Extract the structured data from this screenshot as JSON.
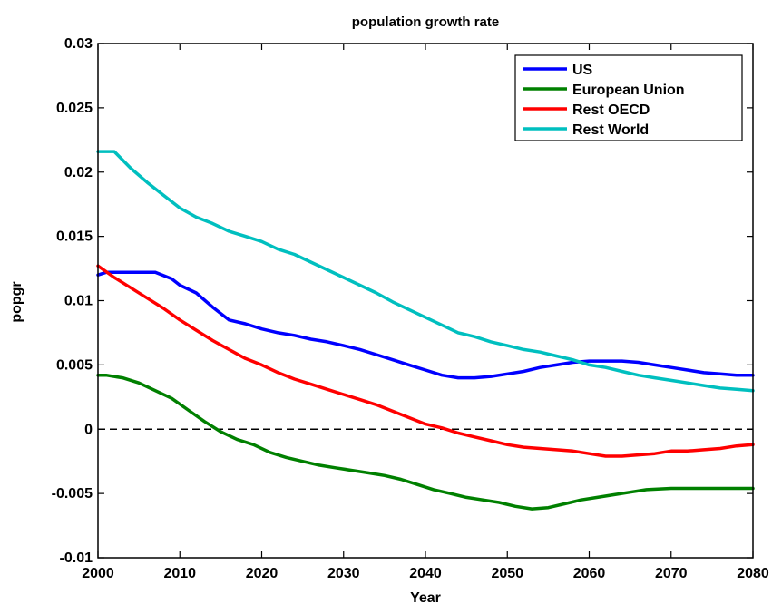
{
  "chart_data": {
    "type": "line",
    "title": "population growth rate",
    "xlabel": "Year",
    "ylabel": "popgr",
    "xlim": [
      2000,
      2080
    ],
    "ylim": [
      -0.01,
      0.03
    ],
    "grid": false,
    "legend_position": "top-right",
    "xticks": [
      "2000",
      "2010",
      "2020",
      "2030",
      "2040",
      "2050",
      "2060",
      "2070",
      "2080"
    ],
    "yticks": [
      "-0.01",
      "-0.005",
      "0",
      "0.005",
      "0.01",
      "0.015",
      "0.02",
      "0.025",
      "0.03"
    ],
    "zero_line": {
      "y": 0,
      "style": "dashed",
      "color": "#000000"
    },
    "series": [
      {
        "name": "US",
        "color": "#0000ff",
        "x": [
          2000,
          2001,
          2003,
          2005,
          2007,
          2009,
          2010,
          2012,
          2014,
          2016,
          2018,
          2020,
          2022,
          2024,
          2026,
          2028,
          2030,
          2032,
          2034,
          2036,
          2038,
          2040,
          2042,
          2044,
          2046,
          2048,
          2050,
          2052,
          2054,
          2056,
          2058,
          2060,
          2062,
          2064,
          2066,
          2068,
          2070,
          2072,
          2074,
          2076,
          2078,
          2080
        ],
        "y": [
          0.012,
          0.0122,
          0.0122,
          0.0122,
          0.0122,
          0.0117,
          0.0112,
          0.0106,
          0.0095,
          0.0085,
          0.0082,
          0.0078,
          0.0075,
          0.0073,
          0.007,
          0.0068,
          0.0065,
          0.0062,
          0.0058,
          0.0054,
          0.005,
          0.0046,
          0.0042,
          0.004,
          0.004,
          0.0041,
          0.0043,
          0.0045,
          0.0048,
          0.005,
          0.0052,
          0.0053,
          0.0053,
          0.0053,
          0.0052,
          0.005,
          0.0048,
          0.0046,
          0.0044,
          0.0043,
          0.0042,
          0.0042
        ]
      },
      {
        "name": "European Union",
        "color": "#008000",
        "x": [
          2000,
          2001,
          2003,
          2005,
          2007,
          2009,
          2011,
          2013,
          2015,
          2017,
          2019,
          2021,
          2023,
          2025,
          2027,
          2029,
          2031,
          2033,
          2035,
          2037,
          2039,
          2041,
          2043,
          2045,
          2047,
          2049,
          2051,
          2053,
          2055,
          2057,
          2059,
          2061,
          2063,
          2065,
          2067,
          2070,
          2073,
          2076,
          2080
        ],
        "y": [
          0.0042,
          0.0042,
          0.004,
          0.0036,
          0.003,
          0.0024,
          0.0015,
          0.0006,
          -0.0002,
          -0.0008,
          -0.0012,
          -0.0018,
          -0.0022,
          -0.0025,
          -0.0028,
          -0.003,
          -0.0032,
          -0.0034,
          -0.0036,
          -0.0039,
          -0.0043,
          -0.0047,
          -0.005,
          -0.0053,
          -0.0055,
          -0.0057,
          -0.006,
          -0.0062,
          -0.0061,
          -0.0058,
          -0.0055,
          -0.0053,
          -0.0051,
          -0.0049,
          -0.0047,
          -0.0046,
          -0.0046,
          -0.0046,
          -0.0046
        ]
      },
      {
        "name": "Rest OECD",
        "color": "#ff0000",
        "x": [
          2000,
          2002,
          2004,
          2006,
          2008,
          2010,
          2012,
          2014,
          2016,
          2018,
          2020,
          2022,
          2024,
          2026,
          2028,
          2030,
          2032,
          2034,
          2036,
          2038,
          2040,
          2042,
          2044,
          2046,
          2048,
          2050,
          2052,
          2054,
          2056,
          2058,
          2060,
          2062,
          2064,
          2066,
          2068,
          2070,
          2072,
          2074,
          2076,
          2078,
          2080
        ],
        "y": [
          0.0127,
          0.0118,
          0.011,
          0.0102,
          0.0094,
          0.0085,
          0.0077,
          0.0069,
          0.0062,
          0.0055,
          0.005,
          0.0044,
          0.0039,
          0.0035,
          0.0031,
          0.0027,
          0.0023,
          0.0019,
          0.0014,
          0.0009,
          0.0004,
          0.0001,
          -0.0003,
          -0.0006,
          -0.0009,
          -0.0012,
          -0.0014,
          -0.0015,
          -0.0016,
          -0.0017,
          -0.0019,
          -0.0021,
          -0.0021,
          -0.002,
          -0.0019,
          -0.0017,
          -0.0017,
          -0.0016,
          -0.0015,
          -0.0013,
          -0.0012
        ]
      },
      {
        "name": "Rest World",
        "color": "#00bfbf",
        "x": [
          2000,
          2002,
          2004,
          2006,
          2008,
          2010,
          2012,
          2014,
          2016,
          2018,
          2020,
          2022,
          2024,
          2026,
          2028,
          2030,
          2032,
          2034,
          2036,
          2038,
          2040,
          2042,
          2044,
          2046,
          2048,
          2050,
          2052,
          2054,
          2056,
          2058,
          2060,
          2062,
          2064,
          2066,
          2068,
          2070,
          2072,
          2074,
          2076,
          2078,
          2080
        ],
        "y": [
          0.0216,
          0.0216,
          0.0203,
          0.0192,
          0.0182,
          0.0172,
          0.0165,
          0.016,
          0.0154,
          0.015,
          0.0146,
          0.014,
          0.0136,
          0.013,
          0.0124,
          0.0118,
          0.0112,
          0.0106,
          0.0099,
          0.0093,
          0.0087,
          0.0081,
          0.0075,
          0.0072,
          0.0068,
          0.0065,
          0.0062,
          0.006,
          0.0057,
          0.0054,
          0.005,
          0.0048,
          0.0045,
          0.0042,
          0.004,
          0.0038,
          0.0036,
          0.0034,
          0.0032,
          0.0031,
          0.003
        ]
      }
    ]
  }
}
